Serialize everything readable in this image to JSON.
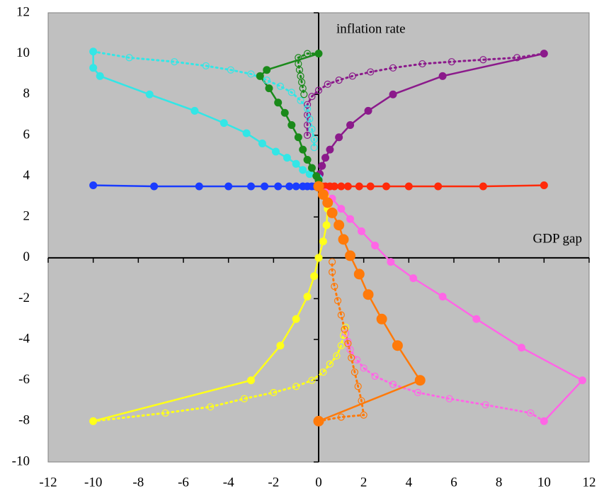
{
  "chart_data": {
    "type": "line",
    "x_label": "GDP gap",
    "y_label": "inflation rate",
    "xlim": [
      -12,
      12
    ],
    "ylim": [
      -10,
      12
    ],
    "xticks": [
      -12,
      -10,
      -8,
      -6,
      -4,
      -2,
      0,
      2,
      4,
      6,
      8,
      10,
      12
    ],
    "yticks": [
      -10,
      -8,
      -6,
      -4,
      -2,
      0,
      2,
      4,
      6,
      8,
      10,
      12
    ],
    "background": "#c0c0c0",
    "series": [
      {
        "color": "#1a3cff",
        "line": "solid",
        "marker": "filled",
        "x": [
          -10,
          -7.3,
          -5.3,
          -4,
          -3,
          -2.4,
          -1.8,
          -1.3,
          -1,
          -0.7,
          -0.5,
          -0.3,
          -0.15,
          0
        ],
        "values": [
          3.55,
          3.5,
          3.5,
          3.5,
          3.5,
          3.5,
          3.5,
          3.5,
          3.5,
          3.5,
          3.5,
          3.5,
          3.5,
          3.5
        ]
      },
      {
        "color": "#ff2a0a",
        "line": "solid",
        "marker": "filled",
        "x": [
          10,
          7.3,
          5.3,
          4,
          3,
          2.3,
          1.8,
          1.3,
          1,
          0.7,
          0.5,
          0.3,
          0.15,
          0
        ],
        "values": [
          3.55,
          3.5,
          3.5,
          3.5,
          3.5,
          3.5,
          3.5,
          3.5,
          3.5,
          3.5,
          3.5,
          3.5,
          3.5,
          3.5
        ]
      },
      {
        "color": "#8b1a8b",
        "line": "dotted",
        "marker": "open",
        "x": [
          10,
          8.8,
          7.3,
          5.9,
          4.6,
          3.3,
          2.3,
          1.5,
          0.9,
          0.4,
          0,
          -0.3,
          -0.5,
          -0.5,
          -0.5,
          -0.5
        ],
        "values": [
          10,
          9.8,
          9.7,
          9.6,
          9.5,
          9.3,
          9.1,
          8.9,
          8.7,
          8.5,
          8.2,
          7.9,
          7.5,
          7.0,
          6.5,
          6.0
        ]
      },
      {
        "color": "#8b1a8b",
        "line": "solid",
        "marker": "filled",
        "x": [
          10,
          5.5,
          3.3,
          2.2,
          1.4,
          0.9,
          0.5,
          0.3,
          0.15,
          0.05,
          0
        ],
        "values": [
          10,
          8.9,
          8,
          7.2,
          6.5,
          5.9,
          5.3,
          4.9,
          4.5,
          4.1,
          3.8
        ]
      },
      {
        "color": "#33e6e6",
        "line": "dotted",
        "marker": "open",
        "x": [
          -10,
          -8.4,
          -6.4,
          -5,
          -3.9,
          -3,
          -2.3,
          -1.7,
          -1.2,
          -0.8,
          -0.5,
          -0.4,
          -0.3,
          -0.2,
          -0.2
        ],
        "values": [
          10.1,
          9.8,
          9.6,
          9.4,
          9.2,
          9,
          8.7,
          8.4,
          8.1,
          7.7,
          7.3,
          6.8,
          6.3,
          5.8,
          5.4
        ]
      },
      {
        "color": "#33e6e6",
        "line": "solid",
        "marker": "filled",
        "x": [
          -10,
          -10,
          -9.7,
          -7.5,
          -5.5,
          -4.2,
          -3.2,
          -2.5,
          -1.9,
          -1.4,
          -1,
          -0.7,
          -0.4,
          0
        ],
        "values": [
          10.1,
          9.3,
          8.9,
          8,
          7.2,
          6.6,
          6.1,
          5.6,
          5.2,
          4.9,
          4.6,
          4.3,
          4.1,
          3.9
        ]
      },
      {
        "color": "#1a8a1a",
        "line": "dotted",
        "marker": "open",
        "x": [
          0,
          -0.5,
          -0.9,
          -0.9,
          -0.85,
          -0.8,
          -0.75,
          -0.7,
          -0.65
        ],
        "values": [
          10,
          10,
          9.8,
          9.5,
          9.2,
          8.9,
          8.6,
          8.3,
          8.0
        ]
      },
      {
        "color": "#1a8a1a",
        "line": "solid",
        "marker": "filled",
        "x": [
          0,
          -2.3,
          -2.6,
          -2.2,
          -1.8,
          -1.5,
          -1.2,
          -0.9,
          -0.7,
          -0.5,
          -0.3,
          -0.1,
          0
        ],
        "values": [
          10,
          9.2,
          8.9,
          8.3,
          7.6,
          7.1,
          6.5,
          5.9,
          5.3,
          4.8,
          4.4,
          4.0,
          3.8
        ]
      },
      {
        "color": "#ffff1a",
        "line": "dotted",
        "marker": "open",
        "x": [
          -10,
          -6.8,
          -4.8,
          -3.3,
          -2,
          -1,
          -0.3,
          0.2,
          0.5,
          0.8,
          1,
          1.1,
          1.2
        ],
        "values": [
          -8,
          -7.6,
          -7.3,
          -6.9,
          -6.6,
          -6.3,
          -6,
          -5.6,
          -5.2,
          -4.8,
          -4.3,
          -3.8,
          -3.4
        ]
      },
      {
        "color": "#ffff1a",
        "line": "solid",
        "marker": "filled",
        "x": [
          -10,
          -3,
          -1.7,
          -1,
          -0.5,
          -0.2,
          0,
          0.2,
          0.35,
          0.4,
          0.3,
          0
        ],
        "values": [
          -8,
          -6,
          -4.3,
          -3,
          -1.9,
          -0.9,
          0,
          0.8,
          1.6,
          2.4,
          3,
          3.5
        ]
      },
      {
        "color": "#ff66e6",
        "line": "dotted",
        "marker": "open",
        "x": [
          10,
          9.4,
          7.4,
          5.8,
          4.4,
          3.3,
          2.5,
          2,
          1.7,
          1.4,
          1.3,
          1.2
        ],
        "values": [
          -8,
          -7.6,
          -7.2,
          -6.9,
          -6.6,
          -6.2,
          -5.8,
          -5.4,
          -5,
          -4.5,
          -4.1,
          -3.7
        ]
      },
      {
        "color": "#ff66e6",
        "line": "solid",
        "marker": "filled",
        "x": [
          10,
          11.7,
          9,
          7,
          5.5,
          4.2,
          3.2,
          2.5,
          1.9,
          1.4,
          1,
          0.6,
          0.3,
          0
        ],
        "values": [
          -8,
          -6,
          -4.4,
          -3,
          -1.9,
          -1,
          -0.2,
          0.6,
          1.3,
          1.9,
          2.4,
          2.9,
          3.2,
          3.5
        ]
      },
      {
        "color": "#ff7a0a",
        "line": "dotted",
        "marker": "open",
        "x": [
          0,
          1,
          2,
          1.9,
          1.75,
          1.6,
          1.45,
          1.3,
          1.15,
          1,
          0.85,
          0.7,
          0.6,
          0.6
        ],
        "values": [
          -8,
          -7.8,
          -7.7,
          -7,
          -6.3,
          -5.6,
          -4.9,
          -4.2,
          -3.5,
          -2.8,
          -2.1,
          -1.4,
          -0.7,
          -0.2
        ]
      },
      {
        "color": "#ff7a0a",
        "line": "solid",
        "marker": "large",
        "x": [
          0,
          4.5,
          3.5,
          2.8,
          2.2,
          1.8,
          1.4,
          1.1,
          0.9,
          0.6,
          0.4,
          0.2,
          0
        ],
        "values": [
          -8,
          -6,
          -4.3,
          -3,
          -1.8,
          -0.8,
          0.1,
          0.9,
          1.6,
          2.2,
          2.7,
          3.1,
          3.5
        ]
      }
    ]
  }
}
